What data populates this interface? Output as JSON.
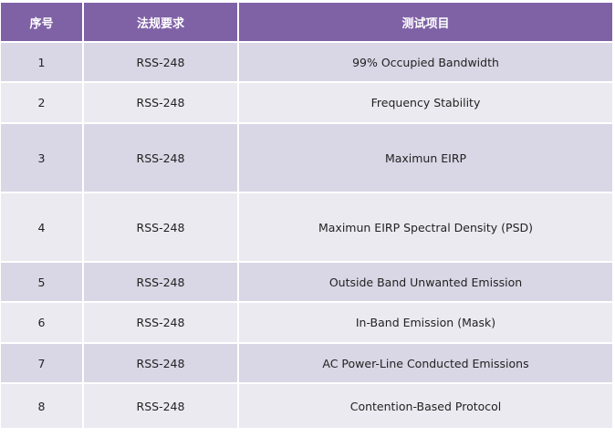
{
  "table": {
    "headers": [
      "序号",
      "法规要求",
      "测试项目"
    ],
    "rows": [
      {
        "no": "1",
        "regulation": "RSS-248",
        "item": "99% Occupied Bandwidth"
      },
      {
        "no": "2",
        "regulation": "RSS-248",
        "item": "Frequency Stability"
      },
      {
        "no": "3",
        "regulation": "RSS-248",
        "item": "Maximun EIRP"
      },
      {
        "no": "4",
        "regulation": "RSS-248",
        "item": "Maximun EIRP Spectral Density (PSD)"
      },
      {
        "no": "5",
        "regulation": "RSS-248",
        "item": "Outside Band Unwanted Emission"
      },
      {
        "no": "6",
        "regulation": "RSS-248",
        "item": "In-Band Emission (Mask)"
      },
      {
        "no": "7",
        "regulation": "RSS-248",
        "item": "AC Power-Line Conducted Emissions"
      },
      {
        "no": "8",
        "regulation": "RSS-248",
        "item": "Contention-Based Protocol"
      }
    ]
  },
  "colors": {
    "header_bg": "#7f62a6",
    "row_dark": "#d9d6e5",
    "row_light": "#eceaf1"
  }
}
